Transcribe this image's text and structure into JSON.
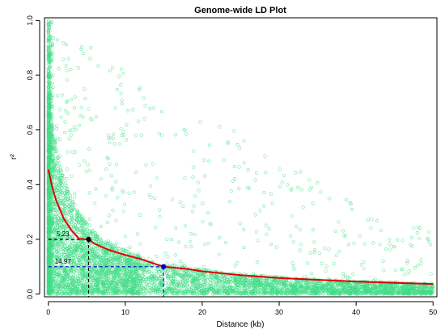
{
  "chart_data": {
    "type": "scatter",
    "title": "Genome-wide LD Plot",
    "xlabel": "Distance (kb)",
    "ylabel": "r²",
    "xlim": [
      -0.5,
      50.5
    ],
    "ylim": [
      -0.01,
      1.01
    ],
    "x_ticks": [
      0,
      10,
      20,
      30,
      40,
      50
    ],
    "y_ticks": [
      0.0,
      0.2,
      0.4,
      0.6,
      0.8,
      1.0
    ],
    "x_tick_labels": [
      "0",
      "10",
      "20",
      "30",
      "40",
      "50"
    ],
    "y_tick_labels": [
      "0.0",
      "0.2",
      "0.4",
      "0.6",
      "0.8",
      "1.0"
    ],
    "grid": false,
    "colors": {
      "points": "#3ddc84",
      "curve": "#e00000",
      "half_decay_marker": "#000000",
      "tenth_marker": "#0000cc",
      "half_decay_guide": "#000000",
      "tenth_guide": "#0000cc"
    },
    "decay_curve": {
      "x": [
        0,
        0.5,
        1,
        2,
        3,
        4,
        5.23,
        6,
        8,
        10,
        12,
        14.97,
        18,
        20,
        25,
        30,
        35,
        40,
        45,
        50
      ],
      "y": [
        0.455,
        0.391,
        0.343,
        0.276,
        0.233,
        0.202,
        0.2,
        0.184,
        0.16,
        0.143,
        0.128,
        0.1,
        0.092,
        0.083,
        0.069,
        0.059,
        0.052,
        0.046,
        0.041,
        0.037
      ]
    },
    "markers": [
      {
        "name": "",
        "label": "5.23",
        "x": 5.23,
        "y": 0.2
      },
      {
        "name": "",
        "label": "14.97",
        "x": 14.97,
        "y": 0.1
      }
    ]
  }
}
